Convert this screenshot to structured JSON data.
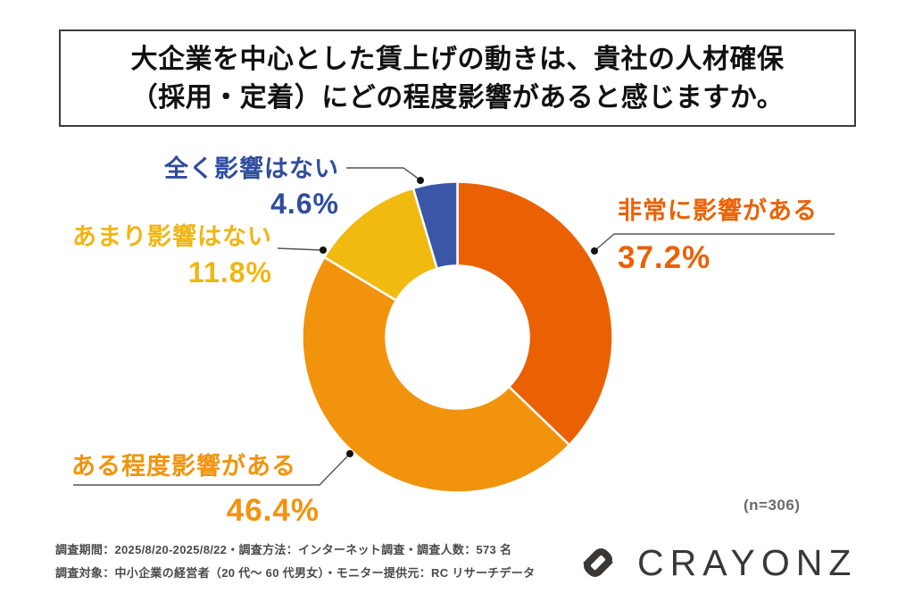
{
  "title": {
    "line1": "大企業を中心とした賃上げの動きは、貴社の人材確保",
    "line2": "（採用・定着）にどの程度影響があると感じますか。"
  },
  "chart_data": {
    "type": "pie",
    "subtype": "donut",
    "title": "大企業を中心とした賃上げの動きは、貴社の人材確保（採用・定着）にどの程度影響があると感じますか。",
    "n": 306,
    "n_label": "(n=306)",
    "start_angle_deg": 0,
    "direction": "clockwise",
    "inner_radius_ratio": 0.46,
    "segments": [
      {
        "label": "非常に影響がある",
        "value": 37.2,
        "pct": "37.2%",
        "color": "#ea6104",
        "text_color": "#ea6104"
      },
      {
        "label": "ある程度影響がある",
        "value": 46.4,
        "pct": "46.4%",
        "color": "#f2930e",
        "text_color": "#f2930e"
      },
      {
        "label": "あまり影響はない",
        "value": 11.8,
        "pct": "11.8%",
        "color": "#f0ba11",
        "text_color": "#f0b614"
      },
      {
        "label": "全く影響はない",
        "value": 4.6,
        "pct": "4.6%",
        "color": "#3a57a7",
        "text_color": "#2e4d9d"
      }
    ],
    "leader_line_color": "#555555",
    "leader_dot_color": "#111111"
  },
  "footer": {
    "line1": "調査期間：2025/8/20-2025/8/22・調査方法：インターネット調査・調査人数：573 名",
    "line2": "調査対象：中小企業の経営者（20 代〜 60 代男女）・モニター提供元：RC リサーチデータ"
  },
  "brand": {
    "name": "CRAYONZ",
    "color": "#3a3734"
  }
}
